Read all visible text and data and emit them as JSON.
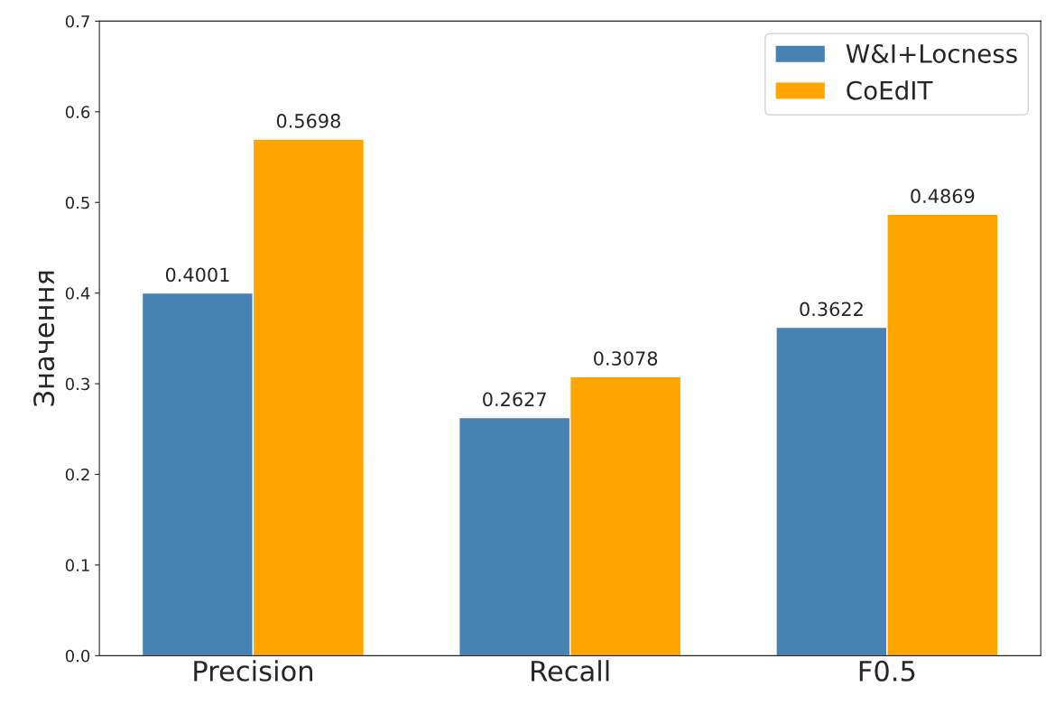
{
  "chart_data": {
    "type": "bar",
    "ylabel": "Значення",
    "categories": [
      "Precision",
      "Recall",
      "F0.5"
    ],
    "series": [
      {
        "name": "W&I+Locness",
        "color": "#4682b4",
        "values": [
          0.4001,
          0.2627,
          0.3622
        ]
      },
      {
        "name": "CoEdIT",
        "color": "#ffa500",
        "values": [
          0.5698,
          0.3078,
          0.4869
        ]
      }
    ],
    "ylim": [
      0,
      0.7
    ],
    "yticks": [
      {
        "value": 0,
        "label": "0.0"
      },
      0.1,
      0.2,
      0.3,
      0.4,
      0.5,
      0.6,
      0.7
    ],
    "data_labels": true,
    "legend": "top right",
    "grid": false
  }
}
